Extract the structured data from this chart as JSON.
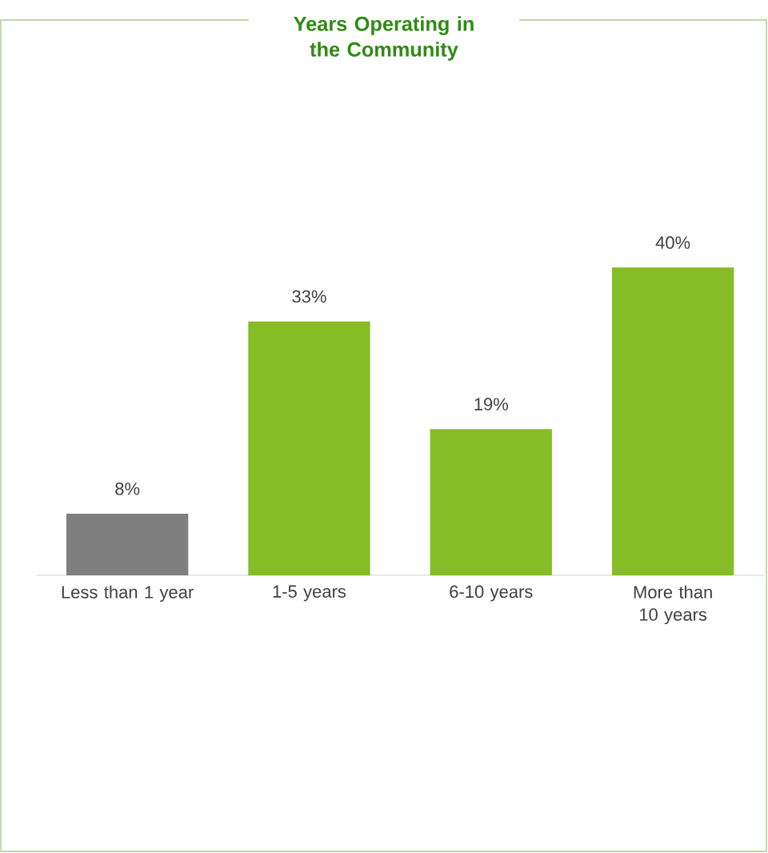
{
  "chart_data": {
    "type": "bar",
    "title": "Years Operating in the Community",
    "categories": [
      "Less than 1 year",
      "1-5 years",
      "6-10 years",
      "More than 10 years"
    ],
    "values": [
      8,
      33,
      19,
      40
    ],
    "colors": [
      "#7f7f7f",
      "#86bc25",
      "#86bc25",
      "#86bc25"
    ],
    "value_labels": [
      "8%",
      "33%",
      "19%",
      "40%"
    ]
  }
}
